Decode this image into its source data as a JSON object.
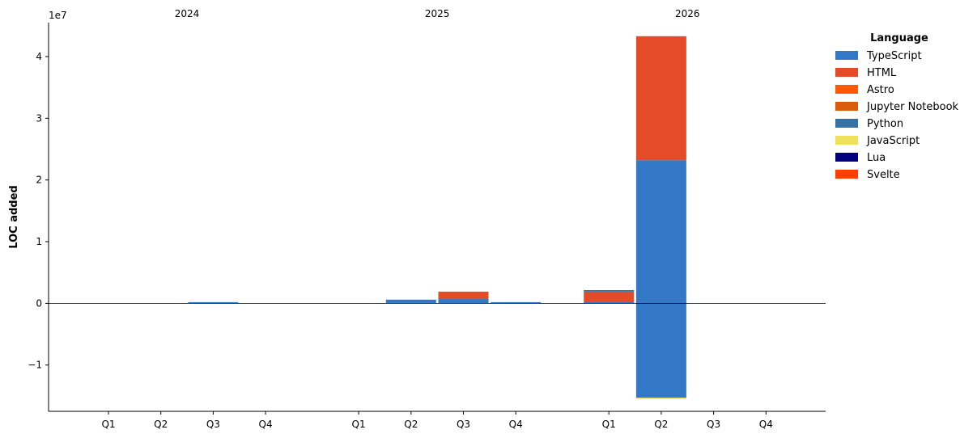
{
  "chart_data": {
    "type": "bar",
    "stacked": true,
    "diverging": true,
    "ylabel": "LOC added",
    "y_offset_label": "1e7",
    "ylim": [
      -17500000,
      45500000
    ],
    "yticks": [
      -10000000,
      0,
      10000000,
      20000000,
      30000000,
      40000000
    ],
    "ytick_labels": [
      "−1",
      "0",
      "1",
      "2",
      "3",
      "4"
    ],
    "zero_line": true,
    "grid": false,
    "legend": {
      "title": "Language",
      "position": "right"
    },
    "groups": [
      "2024",
      "2025",
      "2026"
    ],
    "categories": [
      {
        "group": "2024",
        "label": "Q1"
      },
      {
        "group": "2024",
        "label": "Q2"
      },
      {
        "group": "2024",
        "label": "Q3"
      },
      {
        "group": "2024",
        "label": "Q4"
      },
      {
        "group": "2025",
        "label": "Q1"
      },
      {
        "group": "2025",
        "label": "Q2"
      },
      {
        "group": "2025",
        "label": "Q3"
      },
      {
        "group": "2025",
        "label": "Q4"
      },
      {
        "group": "2026",
        "label": "Q1"
      },
      {
        "group": "2026",
        "label": "Q2"
      },
      {
        "group": "2026",
        "label": "Q3"
      },
      {
        "group": "2026",
        "label": "Q4"
      }
    ],
    "series": [
      {
        "name": "TypeScript",
        "color": "#3278c6",
        "values": [
          0,
          0,
          150000,
          0,
          0,
          600000,
          700000,
          100000,
          300000,
          23200000,
          0,
          0
        ],
        "negative": [
          0,
          0,
          0,
          0,
          0,
          0,
          0,
          0,
          0,
          -15300000,
          0,
          0
        ]
      },
      {
        "name": "HTML",
        "color": "#e34c26",
        "values": [
          0,
          0,
          0,
          0,
          0,
          0,
          1200000,
          0,
          1600000,
          20100000,
          0,
          0
        ],
        "negative": [
          0,
          0,
          0,
          0,
          0,
          0,
          0,
          0,
          0,
          0,
          0,
          0
        ]
      },
      {
        "name": "Astro",
        "color": "#ff5a03",
        "values": [
          0,
          0,
          0,
          0,
          0,
          0,
          0,
          0,
          0,
          0,
          0,
          0
        ],
        "negative": [
          0,
          0,
          0,
          0,
          0,
          0,
          0,
          0,
          0,
          0,
          0,
          0
        ]
      },
      {
        "name": "Jupyter Notebook",
        "color": "#da5b0b",
        "values": [
          0,
          0,
          0,
          0,
          0,
          0,
          0,
          0,
          0,
          0,
          0,
          0
        ],
        "negative": [
          0,
          0,
          0,
          0,
          0,
          0,
          0,
          0,
          0,
          0,
          0,
          0
        ]
      },
      {
        "name": "Python",
        "color": "#3572a5",
        "values": [
          0,
          0,
          0,
          0,
          0,
          0,
          0,
          0,
          250000,
          0,
          0,
          0
        ],
        "negative": [
          0,
          0,
          0,
          0,
          0,
          0,
          0,
          0,
          0,
          0,
          0,
          0
        ]
      },
      {
        "name": "JavaScript",
        "color": "#f1e05a",
        "values": [
          0,
          0,
          0,
          0,
          0,
          0,
          0,
          0,
          0,
          0,
          0,
          0
        ],
        "negative": [
          0,
          0,
          0,
          0,
          0,
          0,
          0,
          0,
          0,
          -100000,
          0,
          0
        ]
      },
      {
        "name": "Lua",
        "color": "#000080",
        "values": [
          0,
          0,
          0,
          0,
          0,
          0,
          0,
          0,
          0,
          0,
          0,
          0
        ],
        "negative": [
          0,
          0,
          0,
          0,
          0,
          0,
          0,
          0,
          0,
          0,
          0,
          0
        ]
      },
      {
        "name": "Svelte",
        "color": "#ff3e00",
        "values": [
          0,
          0,
          0,
          0,
          0,
          0,
          0,
          0,
          0,
          0,
          0,
          0
        ],
        "negative": [
          0,
          0,
          0,
          0,
          0,
          0,
          0,
          0,
          0,
          0,
          0,
          0
        ]
      }
    ]
  }
}
